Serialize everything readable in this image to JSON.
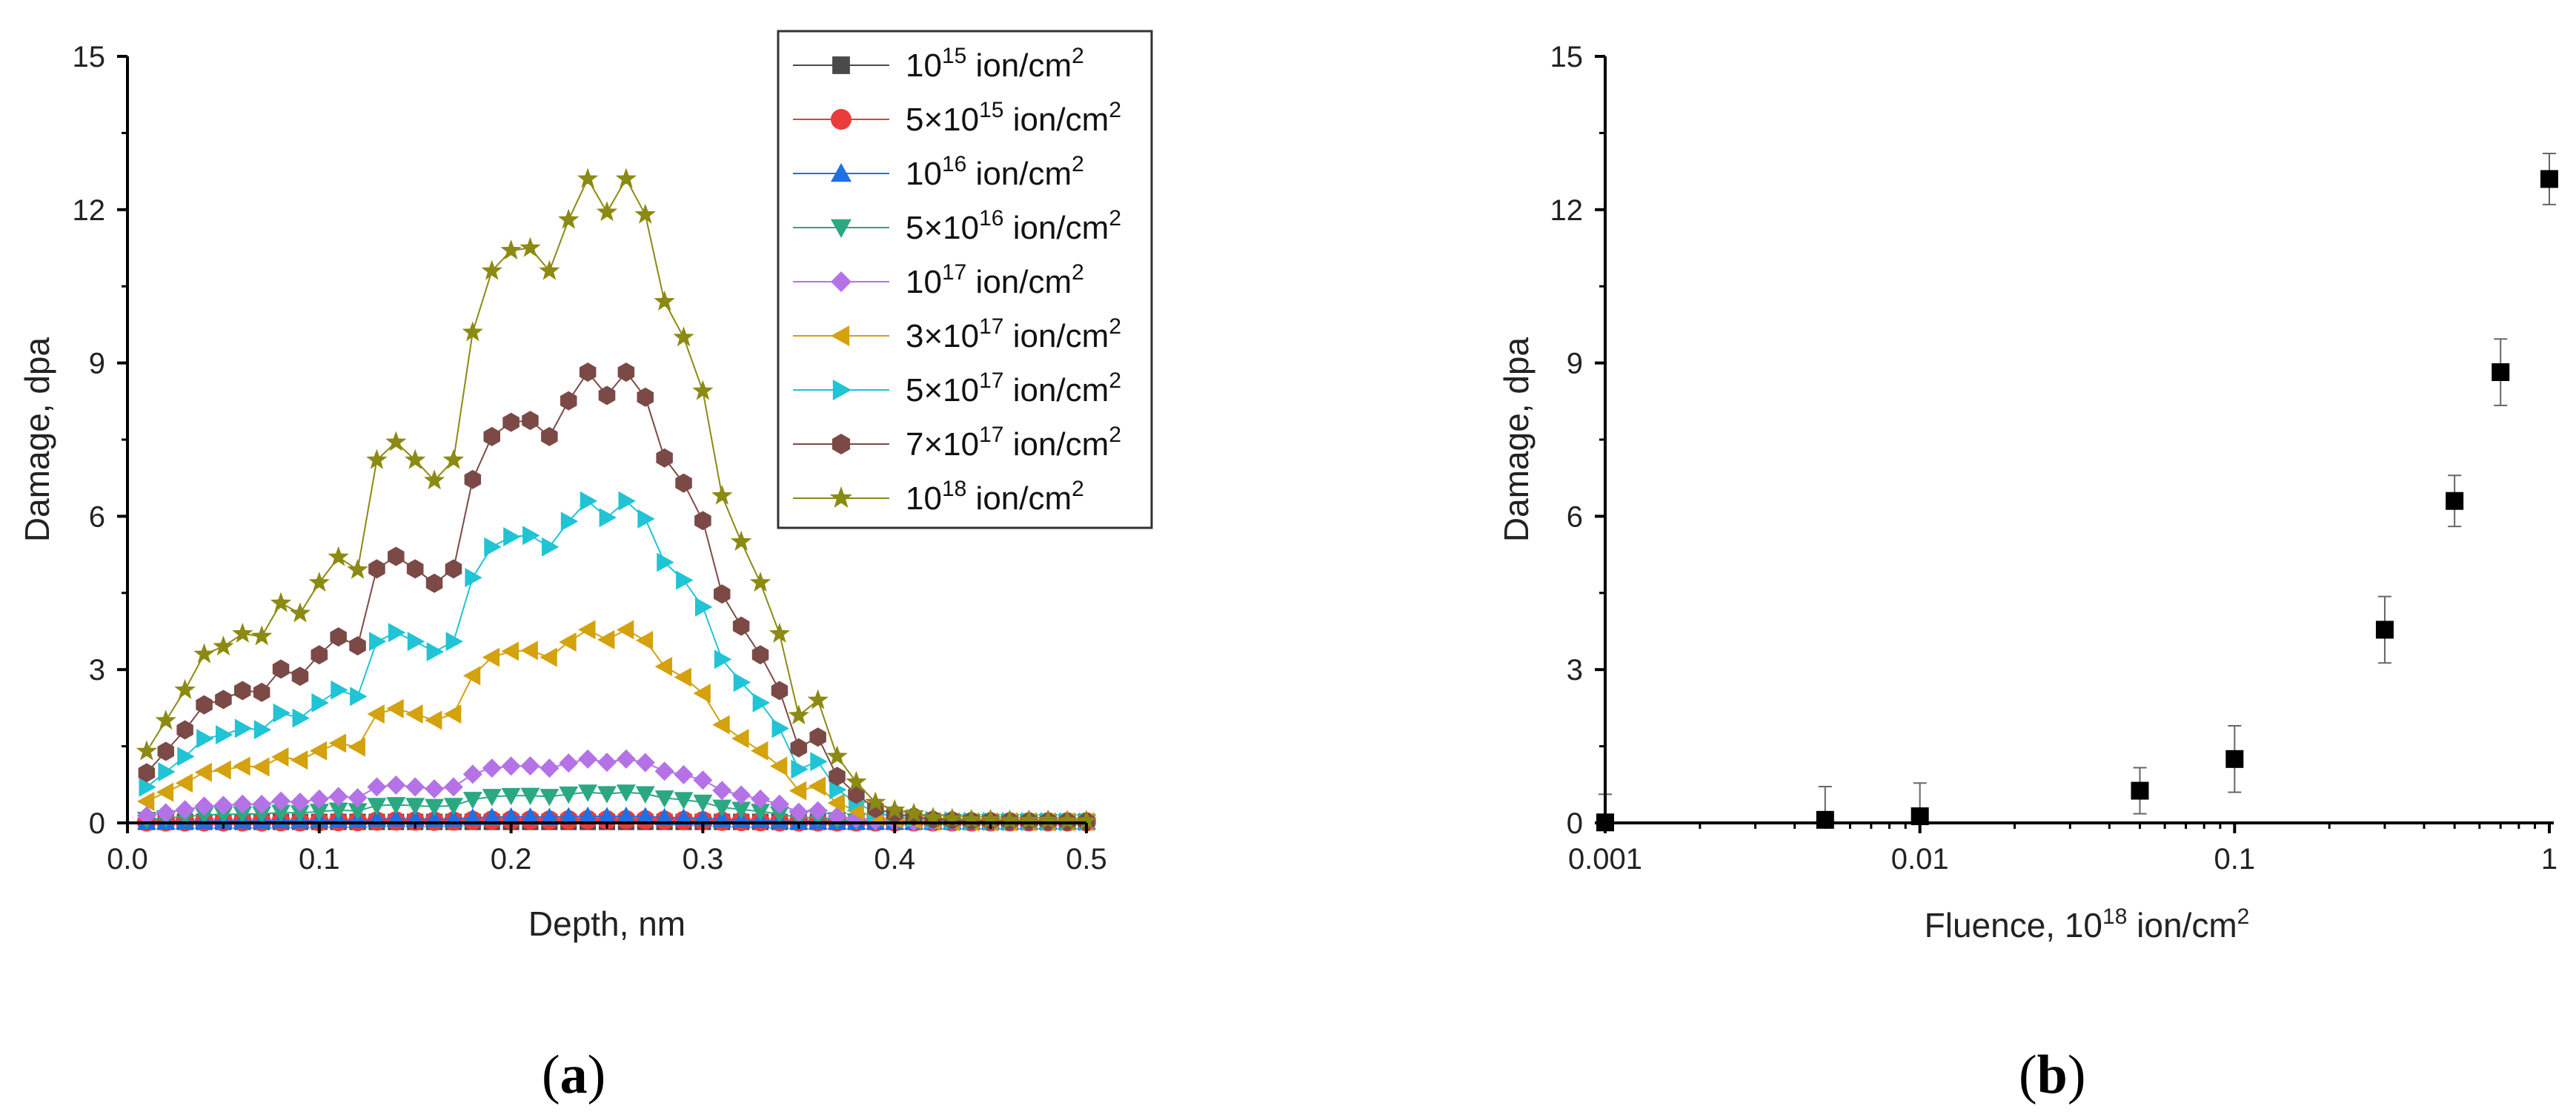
{
  "figure_a": {
    "panel_label": {
      "open": "(",
      "letter": "a",
      "close": ")"
    },
    "chart_data": {
      "type": "line",
      "title": "",
      "xlabel": "Depth, nm",
      "ylabel": "Damage, dpa",
      "xlim": [
        0,
        0.5
      ],
      "ylim": [
        0,
        15
      ],
      "xticks": [
        0,
        0.1,
        0.2,
        0.3,
        0.4,
        0.5
      ],
      "xticklabels": [
        "0.0",
        "0.1",
        "0.2",
        "0.3",
        "0.4",
        "0.5"
      ],
      "yticks": [
        0,
        3,
        6,
        9,
        12,
        15
      ],
      "yticklabels": [
        "0",
        "3",
        "6",
        "9",
        "12",
        "15"
      ],
      "legend_position": "top-right",
      "x": [
        0.01,
        0.02,
        0.03,
        0.04,
        0.05,
        0.06,
        0.07,
        0.08,
        0.09,
        0.1,
        0.11,
        0.12,
        0.13,
        0.14,
        0.15,
        0.16,
        0.17,
        0.18,
        0.19,
        0.2,
        0.21,
        0.22,
        0.23,
        0.24,
        0.25,
        0.26,
        0.27,
        0.28,
        0.29,
        0.3,
        0.31,
        0.32,
        0.33,
        0.34,
        0.35,
        0.36,
        0.37,
        0.38,
        0.39,
        0.4,
        0.41,
        0.42,
        0.43,
        0.44,
        0.45,
        0.46,
        0.47,
        0.48,
        0.49,
        0.5
      ],
      "series": [
        {
          "name": "10^15 ion/cm^2",
          "label": {
            "coef": "",
            "exp": "15"
          },
          "color": "#4a4a4a",
          "marker": "square",
          "peak": 0.013
        },
        {
          "name": "5x10^15 ion/cm^2",
          "label": {
            "coef": "5×",
            "exp": "15"
          },
          "color": "#ec3b3b",
          "marker": "circle",
          "peak": 0.063
        },
        {
          "name": "10^16 ion/cm^2",
          "label": {
            "coef": "",
            "exp": "16"
          },
          "color": "#1f6fe5",
          "marker": "triangle-up",
          "peak": 0.13
        },
        {
          "name": "5x10^16 ion/cm^2",
          "label": {
            "coef": "5×",
            "exp": "16"
          },
          "color": "#2ba882",
          "marker": "triangle-down",
          "peak": 0.6
        },
        {
          "name": "10^17 ion/cm^2",
          "label": {
            "coef": "",
            "exp": "17"
          },
          "color": "#b572e6",
          "marker": "diamond",
          "peak": 1.25
        },
        {
          "name": "3x10^17 ion/cm^2",
          "label": {
            "coef": "3×",
            "exp": "17"
          },
          "color": "#d3a20c",
          "marker": "triangle-left",
          "peak": 3.78
        },
        {
          "name": "5x10^17 ion/cm^2",
          "label": {
            "coef": "5×",
            "exp": "17"
          },
          "color": "#20c4d4",
          "marker": "triangle-right",
          "peak": 6.3
        },
        {
          "name": "7x10^17 ion/cm^2",
          "label": {
            "coef": "7×",
            "exp": "17"
          },
          "color": "#7b4a46",
          "marker": "hexagon",
          "peak": 8.82
        },
        {
          "name": "10^18 ion/cm^2",
          "label": {
            "coef": "",
            "exp": "18"
          },
          "color": "#8b8a12",
          "marker": "star",
          "peak": 12.6
        }
      ],
      "profile_at_peak_1e18": [
        1.4,
        2.0,
        2.6,
        3.3,
        3.45,
        3.7,
        3.65,
        4.3,
        4.1,
        4.7,
        5.2,
        4.95,
        7.1,
        7.45,
        7.1,
        6.7,
        7.1,
        9.6,
        10.8,
        11.2,
        11.25,
        10.8,
        11.8,
        12.6,
        11.95,
        12.6,
        11.9,
        10.2,
        9.5,
        8.45,
        6.4,
        5.5,
        4.7,
        3.7,
        2.1,
        2.4,
        1.3,
        0.8,
        0.4,
        0.25,
        0.18,
        0.1,
        0.08,
        0.06,
        0.06,
        0.05,
        0.05,
        0.05,
        0.04,
        0.04
      ],
      "legend_unit": "ion/cm",
      "legend_unit_exp": "2",
      "legend_base": "10"
    }
  },
  "figure_b": {
    "panel_label": {
      "open": "(",
      "letter": "b",
      "close": ")"
    },
    "chart_data": {
      "type": "scatter",
      "title": "",
      "xlabel_main": "Fluence, 10",
      "xlabel_exp": "18",
      "xlabel_unit": " ion/cm",
      "xlabel_unit_exp": "2",
      "ylabel": "Damage, dpa",
      "xscale": "log",
      "xlim": [
        0.001,
        1
      ],
      "ylim": [
        0,
        15
      ],
      "xticks": [
        0.001,
        0.01,
        0.1,
        1
      ],
      "xticklabels": [
        "0.001",
        "0.01",
        "0.1",
        "1"
      ],
      "yticks": [
        0,
        3,
        6,
        9,
        12,
        15
      ],
      "yticklabels": [
        "0",
        "3",
        "6",
        "9",
        "12",
        "15"
      ],
      "x": [
        0.001,
        0.005,
        0.01,
        0.05,
        0.1,
        0.3,
        0.5,
        0.7,
        1.0
      ],
      "y": [
        0.01,
        0.06,
        0.13,
        0.63,
        1.25,
        3.78,
        6.3,
        8.82,
        12.6
      ],
      "yerr": [
        0.55,
        0.65,
        0.65,
        0.45,
        0.65,
        0.65,
        0.5,
        0.65,
        0.5
      ],
      "marker": "square",
      "color": "#000000"
    }
  }
}
